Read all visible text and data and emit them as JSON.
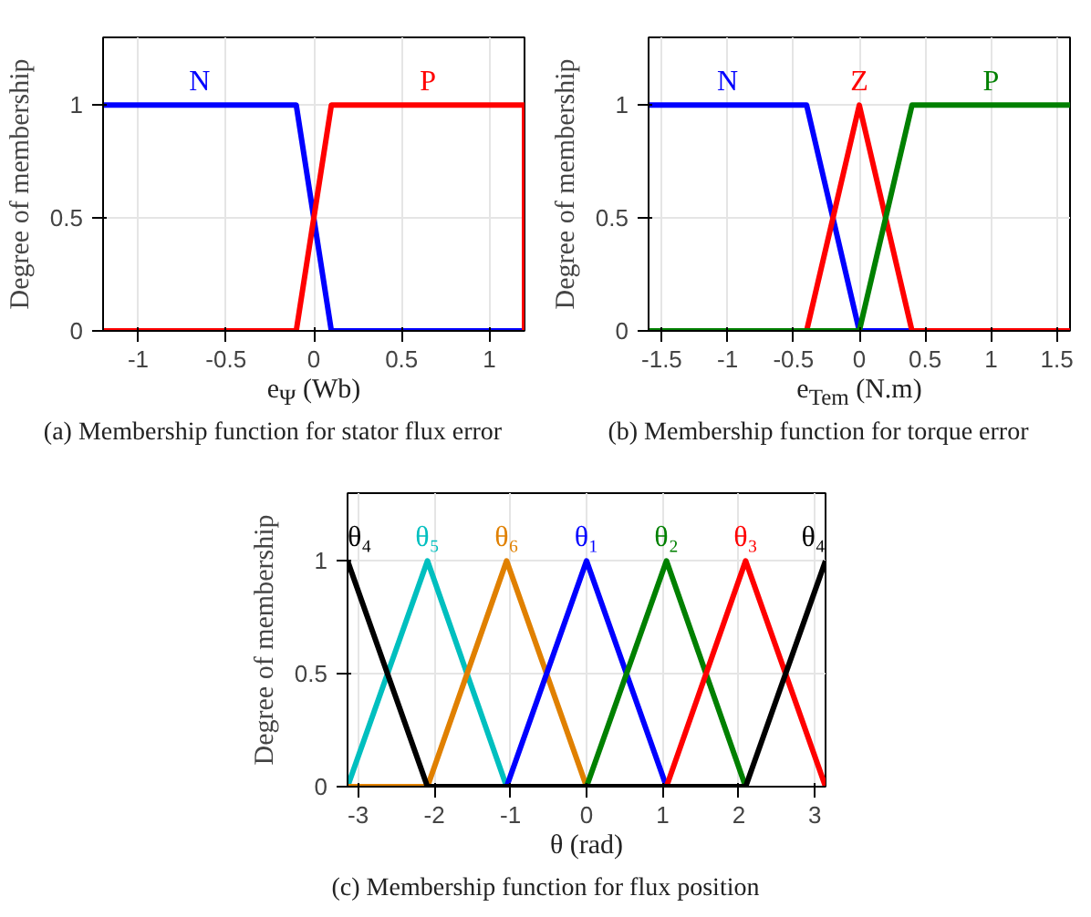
{
  "chart_data": [
    {
      "type": "line",
      "xlabel": "e$_{Ψ}$ (Wb)",
      "ylabel": "Degree of membership",
      "annotations": [
        "(a) Membership function for stator flux error"
      ],
      "xlim": [
        -1.2,
        1.2
      ],
      "ylim": [
        0,
        1.3
      ],
      "xticks": [
        -1,
        -0.5,
        0,
        0.5,
        1
      ],
      "yticks": [
        0,
        0.5,
        1
      ],
      "grid": true,
      "line_style": "solid",
      "series": [
        {
          "name": "N",
          "color": "#0000ff",
          "x": [
            -1.2,
            -0.1,
            0.1,
            1.2
          ],
          "values": [
            1,
            1,
            0,
            0
          ]
        },
        {
          "name": "P",
          "color": "#ff0000",
          "x": [
            -1.2,
            -0.1,
            0.1,
            1.2,
            1.2
          ],
          "values": [
            0,
            0,
            1,
            1,
            0
          ]
        }
      ]
    },
    {
      "type": "line",
      "xlabel": "e$_{Tem}$ (N.m)",
      "ylabel": "Degree of membership",
      "annotations": [
        "(b) Membership function for torque error"
      ],
      "xlim": [
        -1.6,
        1.6
      ],
      "ylim": [
        0,
        1.3
      ],
      "xticks": [
        -1.5,
        -1,
        -0.5,
        0,
        0.5,
        1,
        1.5
      ],
      "yticks": [
        0,
        0.5,
        1
      ],
      "grid": true,
      "line_style": "solid",
      "series": [
        {
          "name": "N",
          "color": "#0000ff",
          "x": [
            -1.6,
            -0.4,
            0,
            1.6
          ],
          "values": [
            1,
            1,
            0,
            0
          ]
        },
        {
          "name": "Z",
          "color": "#ff0000",
          "x": [
            -1.6,
            -0.4,
            0,
            0.4,
            1.6
          ],
          "values": [
            0,
            0,
            1,
            0,
            0
          ]
        },
        {
          "name": "P",
          "color": "#008000",
          "x": [
            -1.6,
            0,
            0.4,
            1.6
          ],
          "values": [
            0,
            0,
            1,
            1
          ]
        }
      ]
    },
    {
      "type": "line",
      "xlabel": "θ  (rad)",
      "ylabel": "Degree of membership",
      "annotations": [
        "(c) Membership function for flux position"
      ],
      "xlim": [
        -3.14,
        3.14
      ],
      "ylim": [
        0,
        1.3
      ],
      "xticks": [
        -3,
        -2,
        -1,
        0,
        1,
        2,
        3
      ],
      "yticks": [
        0,
        0.5,
        1
      ],
      "grid": true,
      "line_style": "solid",
      "series": [
        {
          "name": "θ₅",
          "color": "#00bfbf",
          "x": [
            -3.14,
            -2.09,
            -1.05
          ],
          "values": [
            0,
            1,
            0
          ]
        },
        {
          "name": "θ₆",
          "color": "#e08000",
          "x": [
            -3.14,
            -2.09,
            -1.05,
            0
          ],
          "values": [
            0,
            0,
            1,
            0
          ]
        },
        {
          "name": "θ₁",
          "color": "#0000ff",
          "x": [
            -1.05,
            0,
            1.05
          ],
          "values": [
            0,
            1,
            0
          ]
        },
        {
          "name": "θ₂",
          "color": "#008000",
          "x": [
            0,
            1.05,
            2.09
          ],
          "values": [
            0,
            1,
            0
          ]
        },
        {
          "name": "θ₃",
          "color": "#ff0000",
          "x": [
            1.05,
            2.09,
            3.14
          ],
          "values": [
            0,
            1,
            0
          ]
        },
        {
          "name": "θ₄",
          "color": "#000000",
          "x": [
            -3.14,
            -2.09,
            2.09
          ],
          "values": [
            1,
            0,
            0
          ]
        },
        {
          "name": "θ₄",
          "color": "#000000",
          "x": [
            2.09,
            3.14
          ],
          "values": [
            0,
            1
          ]
        }
      ]
    }
  ]
}
